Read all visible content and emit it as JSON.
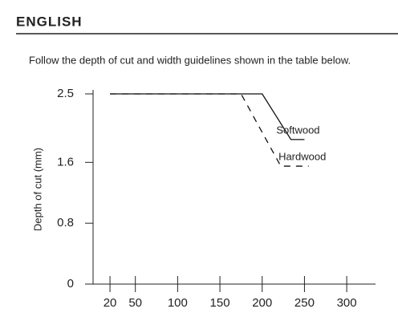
{
  "header": {
    "title": "ENGLISH"
  },
  "intro": "Follow the depth of cut and width guidelines shown in the table below.",
  "chart_data": {
    "type": "line",
    "y_label": "Depth of cut (mm)",
    "xlim": [
      0,
      335
    ],
    "ylim": [
      0,
      2.5
    ],
    "xticks": [
      20,
      50,
      100,
      150,
      200,
      250,
      300
    ],
    "yticks": [
      0,
      0.8,
      1.6,
      2.5
    ],
    "series": [
      {
        "name": "Softwood",
        "color": "#111111",
        "style": "solid",
        "x": [
          20,
          200,
          234,
          250
        ],
        "values": [
          2.5,
          2.5,
          1.9,
          1.9
        ]
      },
      {
        "name": "Hardwood",
        "color": "#111111",
        "style": "dashed",
        "x": [
          20,
          175,
          222,
          255
        ],
        "values": [
          2.5,
          2.5,
          1.55,
          1.55
        ]
      }
    ]
  }
}
